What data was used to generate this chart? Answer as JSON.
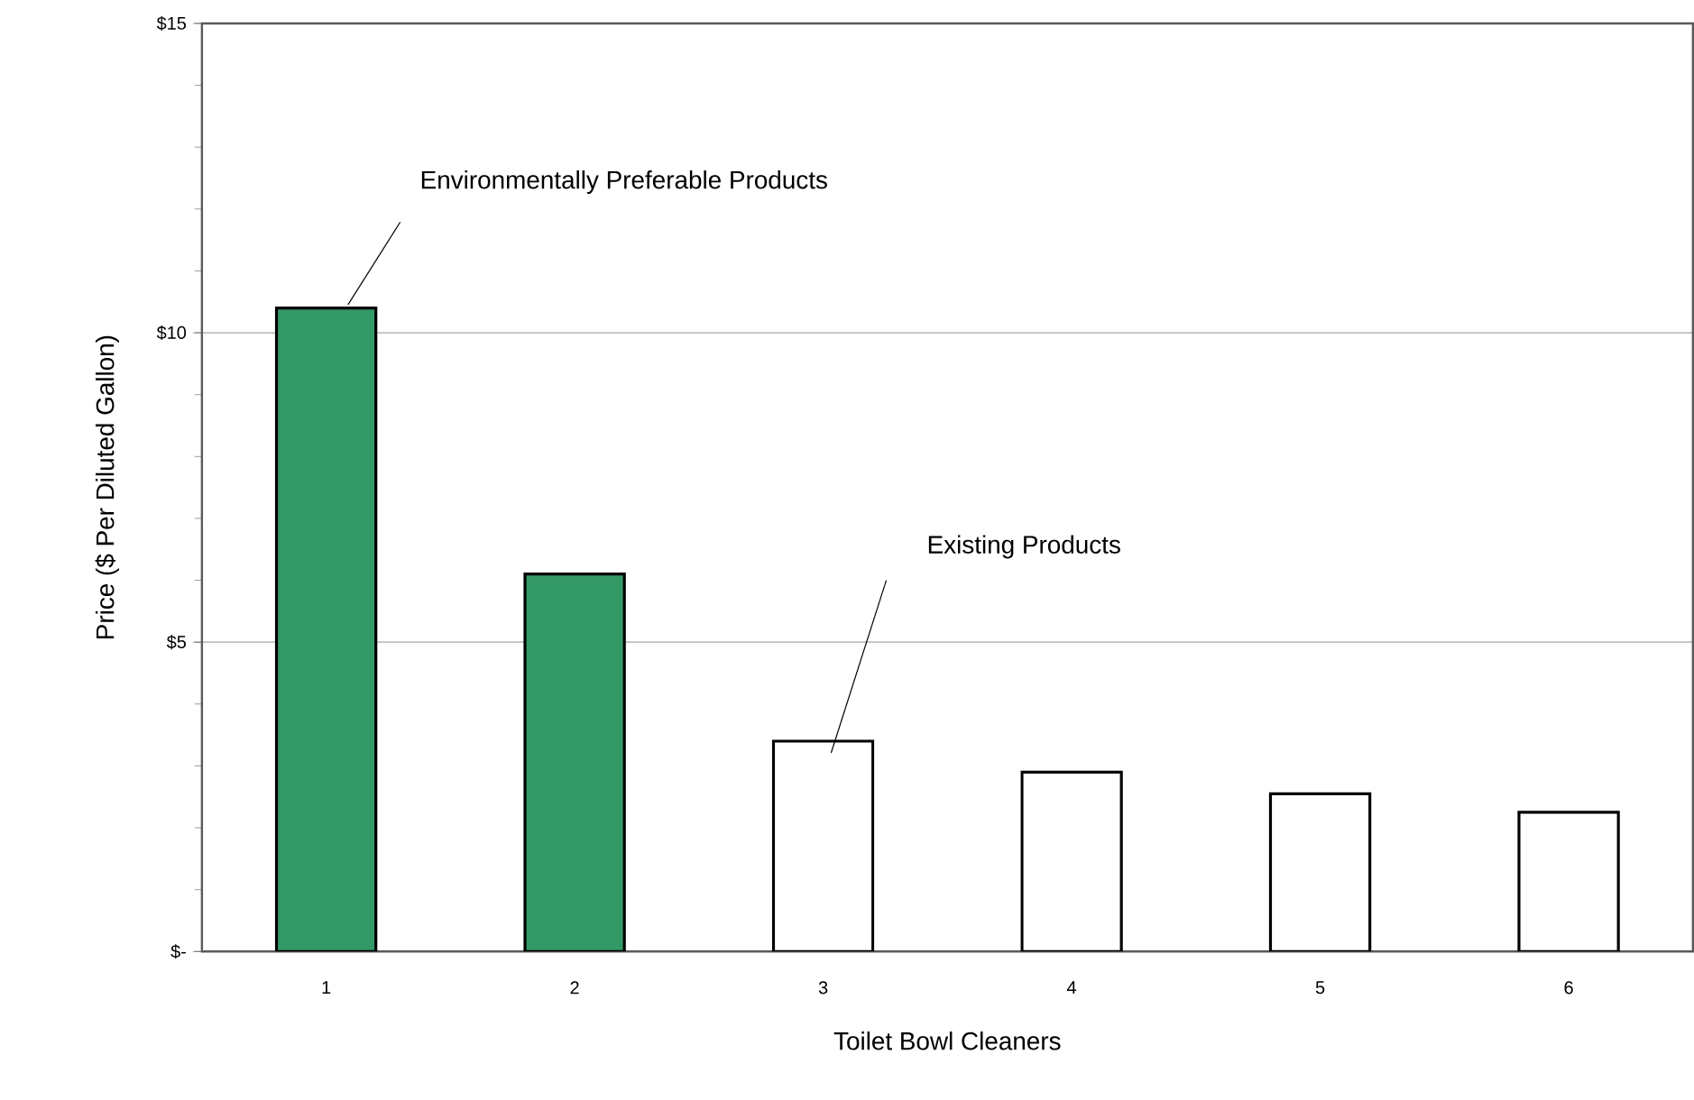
{
  "chart_data": {
    "type": "bar",
    "xlabel": "Toilet Bowl Cleaners",
    "ylabel": "Price ($ Per Diluted Gallon)",
    "categories": [
      "1",
      "2",
      "3",
      "4",
      "5",
      "6"
    ],
    "values": [
      10.4,
      6.1,
      3.4,
      2.9,
      2.55,
      2.25
    ],
    "colors": [
      "#339966",
      "#339966",
      "#ffffff",
      "#ffffff",
      "#ffffff",
      "#ffffff"
    ],
    "ylim": [
      0,
      15
    ],
    "yticks": [
      {
        "value": 0,
        "label": "$-"
      },
      {
        "value": 5,
        "label": "$5"
      },
      {
        "value": 10,
        "label": "$10"
      },
      {
        "value": 15,
        "label": "$15"
      }
    ],
    "grid": "y",
    "annotations": [
      "Environmentally Preferable Products",
      "Existing Products"
    ]
  }
}
